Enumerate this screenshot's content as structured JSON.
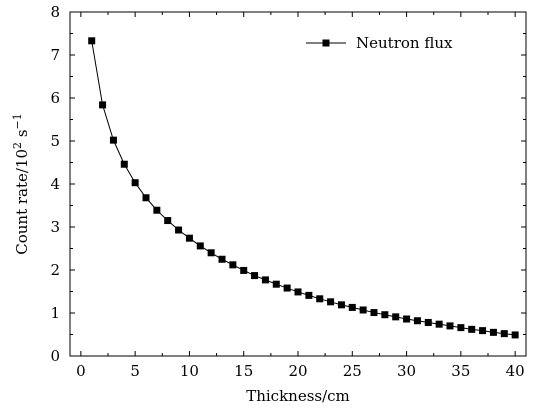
{
  "chart_data": {
    "type": "line",
    "xlabel": "Thickness/cm",
    "ylabel": "Count rate/10",
    "ylabel_sup1": "2",
    "ylabel_unit": " s",
    "ylabel_sup2": "−1",
    "xlim": [
      -1,
      41
    ],
    "ylim": [
      0,
      8
    ],
    "xticks": [
      0,
      5,
      10,
      15,
      20,
      25,
      30,
      35,
      40
    ],
    "yticks": [
      0,
      1,
      2,
      3,
      4,
      5,
      6,
      7,
      8
    ],
    "grid": false,
    "legend_position": "top-right",
    "series": [
      {
        "name": "Neutron flux",
        "color": "#000000",
        "marker": "square",
        "x": [
          1,
          2,
          3,
          4,
          5,
          6,
          7,
          8,
          9,
          10,
          11,
          12,
          13,
          14,
          15,
          16,
          17,
          18,
          19,
          20,
          21,
          22,
          23,
          24,
          25,
          26,
          27,
          28,
          29,
          30,
          31,
          32,
          33,
          34,
          35,
          36,
          37,
          38,
          39,
          40
        ],
        "y": [
          7.33,
          5.84,
          5.02,
          4.46,
          4.03,
          3.68,
          3.39,
          3.15,
          2.93,
          2.74,
          2.56,
          2.4,
          2.25,
          2.12,
          1.99,
          1.87,
          1.77,
          1.67,
          1.58,
          1.49,
          1.41,
          1.33,
          1.26,
          1.19,
          1.13,
          1.07,
          1.01,
          0.96,
          0.91,
          0.86,
          0.82,
          0.78,
          0.74,
          0.7,
          0.66,
          0.62,
          0.59,
          0.55,
          0.52,
          0.49
        ]
      }
    ]
  }
}
